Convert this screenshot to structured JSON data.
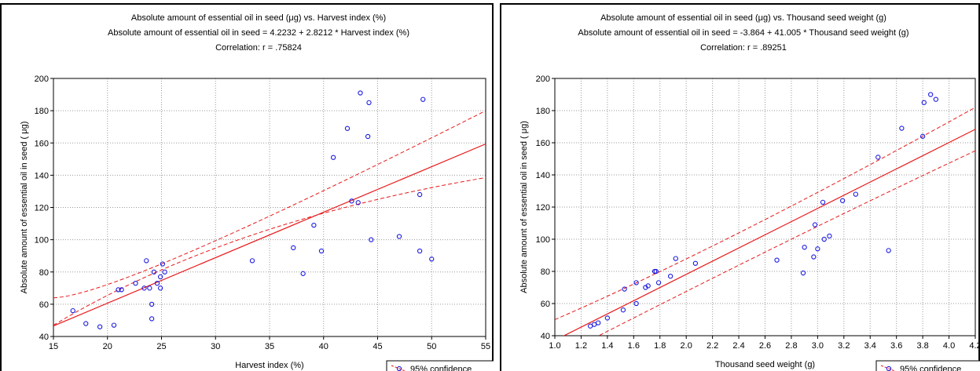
{
  "chart_data": [
    {
      "type": "scatter",
      "title_lines": [
        "Absolute amount of essential oil in seed  (μg) vs. Harvest index (%)",
        "Absolute amount of essential oil in seed  = 4.2232 + 2.8212 *  Harvest index (%)",
        "Correlation: r = .75824"
      ],
      "xlabel": "Harvest index (%)",
      "ylabel": "Absolute amount of essential oil in seed ( μg)",
      "xlim": [
        15,
        55
      ],
      "ylim": [
        40,
        200
      ],
      "xticks": [
        "15",
        "20",
        "25",
        "30",
        "35",
        "40",
        "45",
        "50",
        "55"
      ],
      "yticks": [
        "40",
        "60",
        "80",
        "100",
        "120",
        "140",
        "160",
        "180",
        "200"
      ],
      "grid": true,
      "legend": {
        "label": "95% confidence",
        "position": "bottom-right"
      },
      "regression": {
        "intercept": 4.2232,
        "slope": 2.8212
      },
      "confidence_band": {
        "upper": [
          [
            15,
            64
          ],
          [
            28,
            93.5
          ],
          [
            55,
            180
          ]
        ],
        "lower": [
          [
            15,
            47
          ],
          [
            33,
            102
          ],
          [
            55,
            138.5
          ]
        ]
      },
      "points": [
        [
          16.8,
          56
        ],
        [
          18,
          48
        ],
        [
          19.3,
          46
        ],
        [
          20.6,
          47
        ],
        [
          21,
          69
        ],
        [
          21.3,
          69
        ],
        [
          22.6,
          73
        ],
        [
          23.4,
          70
        ],
        [
          23.6,
          87
        ],
        [
          23.9,
          70
        ],
        [
          24.1,
          60
        ],
        [
          24.1,
          51
        ],
        [
          24.3,
          80
        ],
        [
          24.6,
          73
        ],
        [
          24.9,
          77
        ],
        [
          24.9,
          70
        ],
        [
          25.1,
          85
        ],
        [
          25.3,
          80
        ],
        [
          33.4,
          87
        ],
        [
          37.2,
          95
        ],
        [
          38.1,
          79
        ],
        [
          39.1,
          109
        ],
        [
          39.8,
          93
        ],
        [
          40.9,
          151
        ],
        [
          42.2,
          169
        ],
        [
          42.6,
          124
        ],
        [
          43.2,
          123
        ],
        [
          43.4,
          191
        ],
        [
          44.1,
          164
        ],
        [
          44.2,
          185
        ],
        [
          44.4,
          100
        ],
        [
          47,
          102
        ],
        [
          48.9,
          128
        ],
        [
          48.9,
          93
        ],
        [
          49.2,
          187
        ],
        [
          50,
          88
        ]
      ]
    },
    {
      "type": "scatter",
      "title_lines": [
        "Absolute amount of essential oil in seed  (μg) vs. Thousand seed weight (g)",
        "Absolute amount of essential oil in seed  = -3.864 + 41.005 *  Thousand seed weight (g)",
        "Correlation: r = .89251"
      ],
      "xlabel": "Thousand seed weight (g)",
      "ylabel": "Absolute amount of essential oil in seed ( μg)",
      "xlim": [
        1.0,
        4.2
      ],
      "ylim": [
        40,
        200
      ],
      "xticks": [
        "1.0",
        "1.2",
        "1.4",
        "1.6",
        "1.8",
        "2.0",
        "2.2",
        "2.4",
        "2.6",
        "2.8",
        "3.0",
        "3.2",
        "3.4",
        "3.6",
        "3.8",
        "4.0",
        "4.2"
      ],
      "yticks": [
        "40",
        "60",
        "80",
        "100",
        "120",
        "140",
        "160",
        "180",
        "200"
      ],
      "grid": true,
      "legend": {
        "label": "95% confidence",
        "position": "bottom-right"
      },
      "regression": {
        "intercept": -3.864,
        "slope": 41.005
      },
      "confidence_band": {
        "upper": [
          [
            1.0,
            50
          ],
          [
            2.45,
            106
          ],
          [
            4.2,
            182
          ]
        ],
        "lower": [
          [
            1.0,
            26
          ],
          [
            2.7,
            96
          ],
          [
            4.2,
            155
          ]
        ]
      },
      "points": [
        [
          1.27,
          46
        ],
        [
          1.3,
          47
        ],
        [
          1.33,
          48
        ],
        [
          1.4,
          51
        ],
        [
          1.52,
          56
        ],
        [
          1.53,
          69
        ],
        [
          1.62,
          73
        ],
        [
          1.62,
          60
        ],
        [
          1.69,
          70
        ],
        [
          1.71,
          71
        ],
        [
          1.76,
          80
        ],
        [
          1.77,
          80
        ],
        [
          1.79,
          73
        ],
        [
          1.88,
          77
        ],
        [
          1.92,
          88
        ],
        [
          2.07,
          85
        ],
        [
          2.69,
          87
        ],
        [
          2.89,
          79
        ],
        [
          2.9,
          95
        ],
        [
          2.97,
          89
        ],
        [
          2.98,
          109
        ],
        [
          3.0,
          94
        ],
        [
          3.04,
          123
        ],
        [
          3.05,
          100
        ],
        [
          3.09,
          102
        ],
        [
          3.19,
          124
        ],
        [
          3.29,
          128
        ],
        [
          3.46,
          151
        ],
        [
          3.54,
          93
        ],
        [
          3.64,
          169
        ],
        [
          3.8,
          164
        ],
        [
          3.81,
          185
        ],
        [
          3.86,
          190
        ],
        [
          3.9,
          187
        ]
      ]
    }
  ]
}
